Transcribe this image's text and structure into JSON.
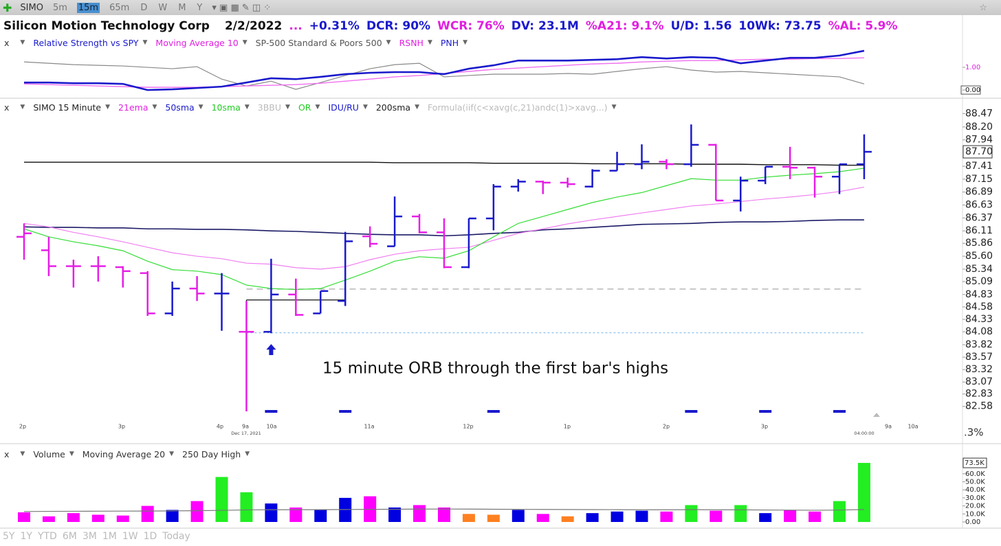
{
  "toolbar": {
    "symbol": "SIMO",
    "timeframes": [
      "5m",
      "15m",
      "65m",
      "D",
      "W",
      "M",
      "Y"
    ],
    "selected": 1
  },
  "header": {
    "name": "Silicon Motion Technology Corp",
    "date": "2/2/2022",
    "stats": [
      {
        "text": "...",
        "color": "#e020e0"
      },
      {
        "text": "+0.31%",
        "color": "#1a1acc"
      },
      {
        "text": "DCR: 90%",
        "color": "#1a1acc"
      },
      {
        "text": "WCR: 76%",
        "color": "#e020e0"
      },
      {
        "text": "DV: 23.1M",
        "color": "#1a1acc"
      },
      {
        "text": "%A21: 9.1%",
        "color": "#e020e0"
      },
      {
        "text": "U/D: 1.56",
        "color": "#1a1acc"
      },
      {
        "text": "10Wk: 73.75",
        "color": "#1a1acc"
      },
      {
        "text": "%AL: 5.9%",
        "color": "#e020e0"
      }
    ]
  },
  "rs_panel": {
    "close": "x",
    "legend": [
      {
        "text": "Relative Strength vs SPY",
        "color": "#1a1acc"
      },
      {
        "text": "Moving Average 10",
        "color": "#e020e0"
      },
      {
        "text": "SP-500 Standard & Poors 500",
        "color": "#555555"
      },
      {
        "text": "RSNH",
        "color": "#e020e0"
      },
      {
        "text": "PNH",
        "color": "#1a1acc"
      }
    ],
    "ylim": [
      -0.27,
      1.85
    ],
    "yticks": [
      {
        "value": 1,
        "label": "1.00"
      },
      {
        "value": 0,
        "label": "0.00"
      }
    ],
    "series": [
      {
        "color": "#888888",
        "width": 1.2,
        "values": [
          1.24,
          1.18,
          1.12,
          1.09,
          1.06,
          1.0,
          0.94,
          1.03,
          0.48,
          0.18,
          0.39,
          0.03,
          0.33,
          0.64,
          0.94,
          1.12,
          1.18,
          0.58,
          0.64,
          0.7,
          0.7,
          0.7,
          0.73,
          0.7,
          0.82,
          0.94,
          1.03,
          0.88,
          0.79,
          0.82,
          0.76,
          0.7,
          0.64,
          0.58,
          0.27
        ]
      },
      {
        "color": "#f070f0",
        "width": 1.4,
        "values": [
          0.27,
          0.24,
          0.21,
          0.18,
          0.15,
          0.12,
          0.12,
          0.12,
          0.15,
          0.18,
          0.21,
          0.24,
          0.3,
          0.39,
          0.48,
          0.58,
          0.64,
          0.73,
          0.82,
          0.91,
          0.97,
          1.03,
          1.09,
          1.15,
          1.18,
          1.24,
          1.27,
          1.3,
          1.3,
          1.33,
          1.36,
          1.36,
          1.39,
          1.39,
          1.42
        ]
      },
      {
        "color": "#1a1acc",
        "width": 2.6,
        "values": [
          0.33,
          0.33,
          0.3,
          0.3,
          0.27,
          0.0,
          0.03,
          0.09,
          0.15,
          0.33,
          0.52,
          0.48,
          0.58,
          0.7,
          0.76,
          0.79,
          0.79,
          0.7,
          0.94,
          1.09,
          1.3,
          1.3,
          1.3,
          1.33,
          1.36,
          1.45,
          1.39,
          1.45,
          1.42,
          1.18,
          1.3,
          1.42,
          1.42,
          1.52,
          1.73
        ]
      }
    ]
  },
  "price_panel": {
    "close": "x",
    "legend": [
      {
        "text": "SIMO 15 Minute",
        "color": "#222222"
      },
      {
        "text": "21ema",
        "color": "#e020e0"
      },
      {
        "text": "50sma",
        "color": "#1a1acc"
      },
      {
        "text": "10sma",
        "color": "#22cc22"
      },
      {
        "text": "3BBU",
        "color": "#bbbbbb"
      },
      {
        "text": "OR",
        "color": "#22cc22"
      },
      {
        "text": "IDU/RU",
        "color": "#1a1acc"
      },
      {
        "text": "200sma",
        "color": "#222222"
      },
      {
        "text": "Formula(iif(c<xavg(c,21)andc(1)>xavg...)",
        "color": "#bbbbbb"
      }
    ],
    "ylim": [
      82.3,
      88.75
    ],
    "yticks": [
      {
        "value": 88.47,
        "label": "88.47"
      },
      {
        "value": 88.2,
        "label": "88.20"
      },
      {
        "value": 87.94,
        "label": "87.94"
      },
      {
        "value": 87.41,
        "label": "87.41"
      },
      {
        "value": 87.15,
        "label": "87.15"
      },
      {
        "value": 86.89,
        "label": "86.89"
      },
      {
        "value": 86.63,
        "label": "86.63"
      },
      {
        "value": 86.37,
        "label": "86.37"
      },
      {
        "value": 86.11,
        "label": "86.11"
      },
      {
        "value": 85.86,
        "label": "85.86"
      },
      {
        "value": 85.6,
        "label": "85.60"
      },
      {
        "value": 85.34,
        "label": "85.34"
      },
      {
        "value": 85.09,
        "label": "85.09"
      },
      {
        "value": 84.83,
        "label": "84.83"
      },
      {
        "value": 84.58,
        "label": "84.58"
      },
      {
        "value": 84.33,
        "label": "84.33"
      },
      {
        "value": 84.08,
        "label": "84.08"
      },
      {
        "value": 83.82,
        "label": "83.82"
      },
      {
        "value": 83.57,
        "label": "83.57"
      },
      {
        "value": 83.32,
        "label": "83.32"
      },
      {
        "value": 83.07,
        "label": "83.07"
      },
      {
        "value": 82.83,
        "label": "82.83"
      },
      {
        "value": 82.58,
        "label": "82.58"
      }
    ],
    "last_price": {
      "value": 87.7,
      "label": "87.70"
    },
    "xlabels": [
      "2p",
      "3p",
      "4p",
      "9a",
      "Dec 17, 2021",
      "10a",
      "11a",
      "12p",
      "1p",
      "2p",
      "3p",
      "04:00:00",
      "9a",
      "10a"
    ],
    "side_label": ".3%",
    "bars": [
      {
        "o": 85.99,
        "h": 86.26,
        "l": 85.53,
        "c": 86.06
      },
      {
        "o": 85.72,
        "h": 85.99,
        "l": 85.2,
        "c": 85.4
      },
      {
        "o": 85.4,
        "h": 85.53,
        "l": 84.97,
        "c": 85.4
      },
      {
        "o": 85.4,
        "h": 85.6,
        "l": 85.09,
        "c": 85.4
      },
      {
        "o": 85.38,
        "h": 85.4,
        "l": 84.97,
        "c": 85.3
      },
      {
        "o": 85.26,
        "h": 85.3,
        "l": 84.4,
        "c": 84.45
      },
      {
        "o": 84.45,
        "h": 85.09,
        "l": 84.4,
        "c": 84.95
      },
      {
        "o": 84.95,
        "h": 85.2,
        "l": 84.7,
        "c": 84.85
      },
      {
        "o": 84.85,
        "h": 85.26,
        "l": 84.1,
        "c": 84.85
      },
      {
        "o": 84.08,
        "h": 84.7,
        "l": 82.48,
        "c": 84.08
      },
      {
        "o": 84.08,
        "h": 85.55,
        "l": 84.05,
        "c": 84.83
      },
      {
        "o": 84.83,
        "h": 85.15,
        "l": 84.4,
        "c": 84.42
      },
      {
        "o": 84.45,
        "h": 84.9,
        "l": 84.45,
        "c": 84.9
      },
      {
        "o": 84.7,
        "h": 86.09,
        "l": 84.6,
        "c": 85.9
      },
      {
        "o": 86.0,
        "h": 86.2,
        "l": 85.78,
        "c": 85.85
      },
      {
        "o": 85.8,
        "h": 86.8,
        "l": 85.8,
        "c": 86.4
      },
      {
        "o": 86.4,
        "h": 86.45,
        "l": 86.06,
        "c": 86.08
      },
      {
        "o": 86.08,
        "h": 86.36,
        "l": 85.36,
        "c": 85.38
      },
      {
        "o": 85.38,
        "h": 86.36,
        "l": 85.36,
        "c": 86.36
      },
      {
        "o": 86.36,
        "h": 87.05,
        "l": 86.12,
        "c": 87.0
      },
      {
        "o": 87.0,
        "h": 87.15,
        "l": 86.9,
        "c": 87.1
      },
      {
        "o": 87.1,
        "h": 87.12,
        "l": 86.85,
        "c": 87.08
      },
      {
        "o": 87.08,
        "h": 87.18,
        "l": 86.98,
        "c": 87.05
      },
      {
        "o": 87.0,
        "h": 87.35,
        "l": 86.98,
        "c": 87.32
      },
      {
        "o": 87.32,
        "h": 87.7,
        "l": 87.32,
        "c": 87.45
      },
      {
        "o": 87.45,
        "h": 87.85,
        "l": 87.35,
        "c": 87.5
      },
      {
        "o": 87.5,
        "h": 87.55,
        "l": 87.35,
        "c": 87.45
      },
      {
        "o": 87.45,
        "h": 88.25,
        "l": 87.4,
        "c": 87.84
      },
      {
        "o": 87.84,
        "h": 87.86,
        "l": 86.72,
        "c": 86.72
      },
      {
        "o": 86.72,
        "h": 87.2,
        "l": 86.5,
        "c": 87.12
      },
      {
        "o": 87.12,
        "h": 87.4,
        "l": 87.05,
        "c": 87.4
      },
      {
        "o": 87.4,
        "h": 87.8,
        "l": 87.15,
        "c": 87.38
      },
      {
        "o": 87.38,
        "h": 87.4,
        "l": 86.78,
        "c": 87.2
      },
      {
        "o": 87.2,
        "h": 87.45,
        "l": 86.85,
        "c": 87.45
      },
      {
        "o": 87.45,
        "h": 88.05,
        "l": 87.15,
        "c": 87.7
      }
    ],
    "bar_colors": [
      "#e61ee6",
      "#e61ee6",
      "#e61ee6",
      "#e61ee6",
      "#e61ee6",
      "#e61ee6",
      "#1a1acc",
      "#e61ee6",
      "#1a1acc",
      "#e61ee6",
      "#1a1acc",
      "#e61ee6",
      "#1a1acc",
      "#1a1acc",
      "#e61ee6",
      "#1a1acc",
      "#e61ee6",
      "#e61ee6",
      "#1a1acc",
      "#1a1acc",
      "#1a1acc",
      "#e61ee6",
      "#e61ee6",
      "#1a1acc",
      "#1a1acc",
      "#1a1acc",
      "#e61ee6",
      "#1a1acc",
      "#e61ee6",
      "#1a1acc",
      "#1a1acc",
      "#e61ee6",
      "#e61ee6",
      "#1a1acc",
      "#1a1acc"
    ],
    "lines": [
      {
        "color": "#111111",
        "width": 1.4,
        "values": [
          87.49,
          87.49,
          87.49,
          87.49,
          87.49,
          87.49,
          87.49,
          87.49,
          87.49,
          87.49,
          87.49,
          87.49,
          87.49,
          87.49,
          87.49,
          87.48,
          87.48,
          87.48,
          87.48,
          87.47,
          87.47,
          87.47,
          87.47,
          87.46,
          87.46,
          87.46,
          87.46,
          87.45,
          87.45,
          87.45,
          87.44,
          87.44,
          87.44,
          87.43,
          87.43
        ]
      },
      {
        "color": "#1a1a66",
        "width": 1.6,
        "values": [
          86.19,
          86.18,
          86.18,
          86.17,
          86.17,
          86.15,
          86.15,
          86.14,
          86.14,
          86.13,
          86.11,
          86.1,
          86.08,
          86.06,
          86.04,
          86.03,
          86.03,
          86.01,
          86.03,
          86.06,
          86.08,
          86.13,
          86.15,
          86.18,
          86.21,
          86.24,
          86.25,
          86.26,
          86.28,
          86.29,
          86.29,
          86.3,
          86.32,
          86.33,
          86.33
        ]
      },
      {
        "color": "#f080f0",
        "width": 1.2,
        "values": [
          86.26,
          86.19,
          86.08,
          85.99,
          85.89,
          85.78,
          85.67,
          85.6,
          85.55,
          85.46,
          85.44,
          85.37,
          85.34,
          85.39,
          85.53,
          85.64,
          85.71,
          85.75,
          85.78,
          85.92,
          86.06,
          86.15,
          86.25,
          86.33,
          86.4,
          86.47,
          86.54,
          86.61,
          86.65,
          86.7,
          86.75,
          86.79,
          86.84,
          86.9,
          86.99
        ]
      },
      {
        "color": "#33dd33",
        "width": 1.2,
        "values": [
          86.15,
          85.99,
          85.89,
          85.81,
          85.71,
          85.5,
          85.33,
          85.3,
          85.23,
          85.02,
          84.95,
          84.93,
          84.95,
          85.12,
          85.3,
          85.5,
          85.59,
          85.56,
          85.71,
          85.99,
          86.26,
          86.4,
          86.54,
          86.68,
          86.79,
          86.88,
          87.02,
          87.16,
          87.13,
          87.13,
          87.19,
          87.23,
          87.26,
          87.3,
          87.37
        ]
      }
    ],
    "or_levels": [
      {
        "value": 84.94,
        "color": "#aaaaaa",
        "dash": "9 6"
      },
      {
        "value": 84.06,
        "color": "#88bbee",
        "dash": "3 3"
      }
    ],
    "first_bar_high": 84.72,
    "signals": [
      10,
      13,
      19,
      27,
      30,
      33
    ],
    "annotation": "15 minute ORB through the first bar's highs",
    "arrow_bar": 10
  },
  "volume_panel": {
    "close": "x",
    "legend": [
      {
        "text": "Volume",
        "color": "#333333"
      },
      {
        "text": "Moving Average 20",
        "color": "#333333"
      },
      {
        "text": "250 Day High",
        "color": "#333333"
      }
    ],
    "ylim": [
      0,
      79000
    ],
    "yticks": [
      {
        "value": 60000,
        "label": "60.0K"
      },
      {
        "value": 50000,
        "label": "50.0K"
      },
      {
        "value": 40000,
        "label": "40.0K"
      },
      {
        "value": 30000,
        "label": "30.0K"
      },
      {
        "value": 20000,
        "label": "20.0K"
      },
      {
        "value": 10000,
        "label": "10.0K"
      },
      {
        "value": 0,
        "label": "0.00"
      }
    ],
    "values": [
      12000,
      7000,
      11000,
      9000,
      8000,
      20000,
      15000,
      26000,
      56000,
      37000,
      23000,
      18000,
      15000,
      30000,
      32000,
      18000,
      21000,
      18000,
      10000,
      9000,
      15000,
      10000,
      7000,
      11000,
      13000,
      14000,
      13000,
      21000,
      14000,
      21000,
      11000,
      15000,
      13000,
      26000,
      73500
    ],
    "last_label": "73.5K",
    "colors": [
      "#ff00ff",
      "#ff00ff",
      "#ff00ff",
      "#ff00ff",
      "#ff00ff",
      "#ff00ff",
      "#0000e0",
      "#ff00ff",
      "#22ee22",
      "#22ee22",
      "#0000e0",
      "#ff00ff",
      "#0000e0",
      "#0000e0",
      "#ff00ff",
      "#0000e0",
      "#ff00ff",
      "#ff00ff",
      "#ff8020",
      "#ff8020",
      "#0000e0",
      "#ff00ff",
      "#ff8020",
      "#0000e0",
      "#0000e0",
      "#0000e0",
      "#ff00ff",
      "#22ee22",
      "#ff00ff",
      "#22ee22",
      "#0000e0",
      "#ff00ff",
      "#ff00ff",
      "#22ee22",
      "#22ee22"
    ],
    "ma": [
      13000,
      13200,
      13300,
      13400,
      13500,
      13600,
      13800,
      14000,
      14500,
      15000,
      15200,
      15300,
      15300,
      15500,
      15700,
      15800,
      16000,
      16100,
      16000,
      15800,
      15700,
      15600,
      15500,
      15400,
      15300,
      15200,
      15200,
      15300,
      15200,
      15100,
      14900,
      14800,
      14600,
      14800,
      15500
    ]
  },
  "ranges": [
    "5Y",
    "1Y",
    "YTD",
    "6M",
    "3M",
    "1M",
    "1W",
    "1D",
    "Today"
  ]
}
